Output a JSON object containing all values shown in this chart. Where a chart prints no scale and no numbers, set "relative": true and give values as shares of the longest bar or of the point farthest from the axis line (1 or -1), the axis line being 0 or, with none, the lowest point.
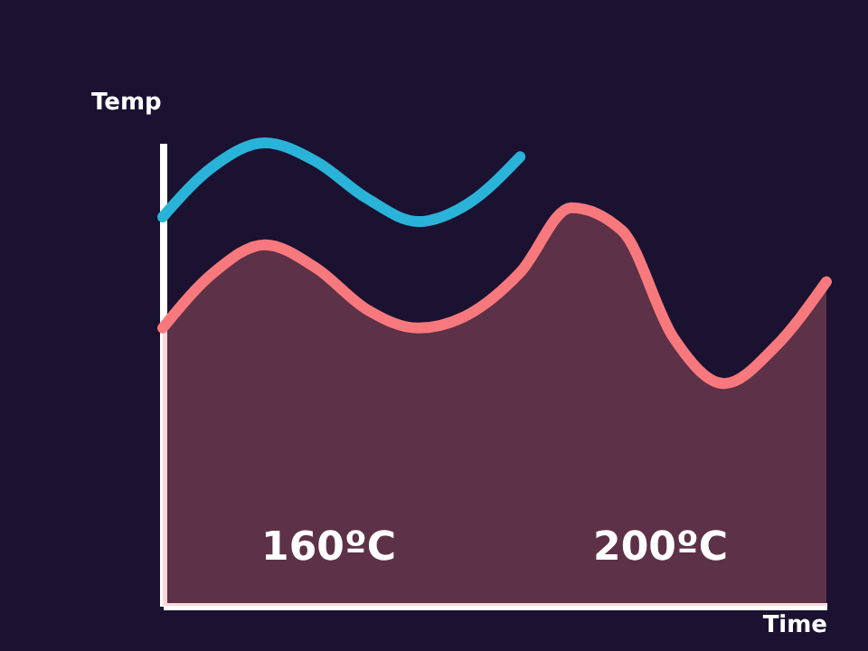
{
  "chart_data": {
    "type": "line",
    "relative": true,
    "xlabel": "Time",
    "ylabel": "Temp",
    "categories": [
      null,
      null,
      null,
      null,
      null,
      null,
      null,
      null,
      null,
      null,
      null,
      null,
      null,
      null
    ],
    "series": [
      {
        "type": "area",
        "color": "#f7797d",
        "values": [
          0.6,
          0.72,
          0.78,
          0.73,
          0.64,
          0.6,
          0.63,
          0.72,
          0.86,
          0.81,
          0.58,
          0.48,
          0.56,
          0.7
        ]
      },
      {
        "type": "line",
        "color": "#2ab3d8",
        "values": [
          0.84,
          0.95,
          1.0,
          0.96,
          0.88,
          0.83,
          0.87,
          0.97,
          null,
          null,
          null,
          null,
          null,
          null
        ]
      }
    ],
    "annotations": [
      "160ºC",
      "200ºC"
    ],
    "tick_labels": false,
    "line_style": "solid"
  }
}
